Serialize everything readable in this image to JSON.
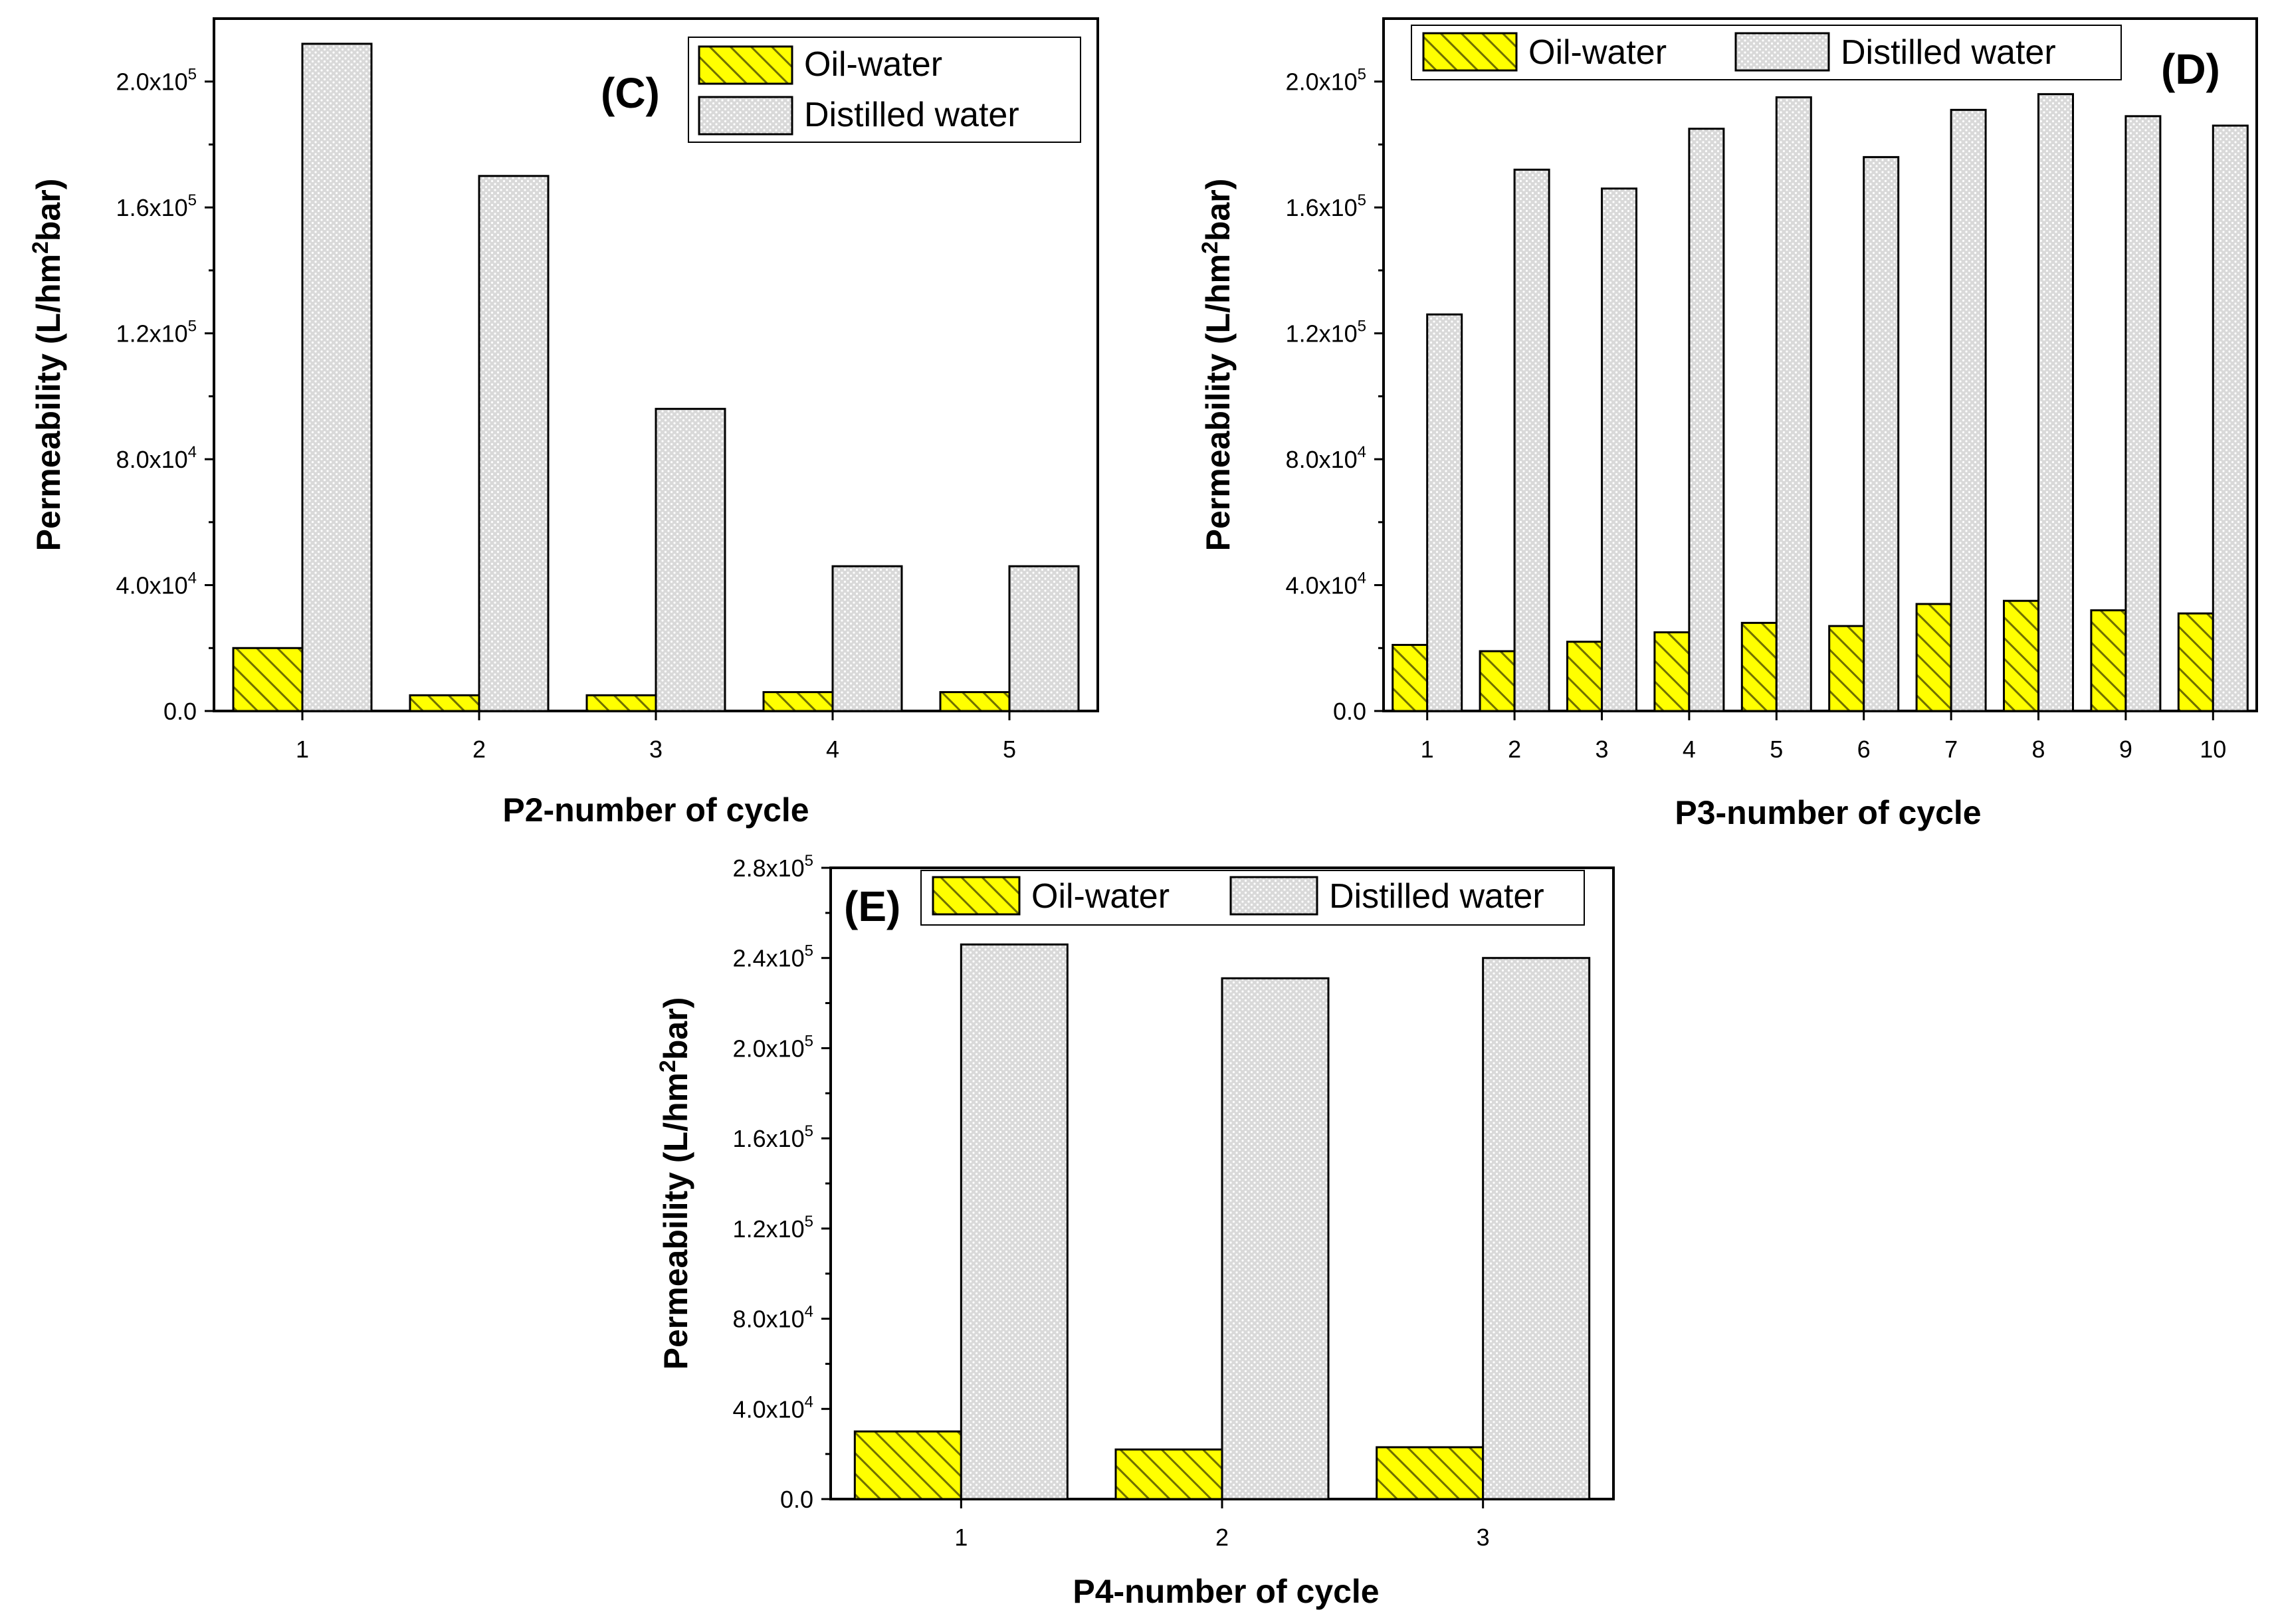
{
  "colors": {
    "oil_fill": "#ffff00",
    "oil_hatch": "#707000",
    "water_fill": "#d9d9d9",
    "water_dot": "#ffffff",
    "axis": "#000000",
    "bar_stroke": "#000000"
  },
  "legend": {
    "oil": "Oil-water",
    "water": "Distilled water"
  },
  "chart_data": [
    {
      "id": "C",
      "type": "bar",
      "panel_label": "(C)",
      "xlabel": "P2-number of cycle",
      "ylabel_prefix": "Permeability (L/hm",
      "ylabel_sup": "2",
      "ylabel_suffix": "bar)",
      "categories": [
        "1",
        "2",
        "3",
        "4",
        "5"
      ],
      "ylim": [
        0,
        220000
      ],
      "y_ticks": [
        {
          "mant": "0.0",
          "exp": ""
        },
        {
          "mant": "4.0x10",
          "exp": "4"
        },
        {
          "mant": "8.0x10",
          "exp": "4"
        },
        {
          "mant": "1.2x10",
          "exp": "5"
        },
        {
          "mant": "1.6x10",
          "exp": "5"
        },
        {
          "mant": "2.0x10",
          "exp": "5"
        }
      ],
      "legend_position": "top-right",
      "series": [
        {
          "name": "Oil-water",
          "key": "oil",
          "values": [
            20000,
            5000,
            5000,
            6000,
            6000
          ]
        },
        {
          "name": "Distilled water",
          "key": "water",
          "values": [
            212000,
            170000,
            96000,
            46000,
            46000
          ]
        }
      ]
    },
    {
      "id": "D",
      "type": "bar",
      "panel_label": "(D)",
      "xlabel": "P3-number of cycle",
      "ylabel_prefix": "Permeability (L/hm",
      "ylabel_sup": "2",
      "ylabel_suffix": "bar)",
      "categories": [
        "1",
        "2",
        "3",
        "4",
        "5",
        "6",
        "7",
        "8",
        "9",
        "10"
      ],
      "ylim": [
        0,
        220000
      ],
      "y_ticks": [
        {
          "mant": "0.0",
          "exp": ""
        },
        {
          "mant": "4.0x10",
          "exp": "4"
        },
        {
          "mant": "8.0x10",
          "exp": "4"
        },
        {
          "mant": "1.2x10",
          "exp": "5"
        },
        {
          "mant": "1.6x10",
          "exp": "5"
        },
        {
          "mant": "2.0x10",
          "exp": "5"
        }
      ],
      "legend_position": "top",
      "series": [
        {
          "name": "Oil-water",
          "key": "oil",
          "values": [
            21000,
            19000,
            22000,
            25000,
            28000,
            27000,
            34000,
            35000,
            32000,
            31000
          ]
        },
        {
          "name": "Distilled water",
          "key": "water",
          "values": [
            126000,
            172000,
            166000,
            185000,
            195000,
            176000,
            191000,
            196000,
            189000,
            186000
          ]
        }
      ]
    },
    {
      "id": "E",
      "type": "bar",
      "panel_label": "(E)",
      "xlabel": "P4-number of cycle",
      "ylabel_prefix": "Permeability (L/hm",
      "ylabel_sup": "2",
      "ylabel_suffix": "bar)",
      "categories": [
        "1",
        "2",
        "3"
      ],
      "ylim": [
        0,
        280000
      ],
      "y_ticks": [
        {
          "mant": "0.0",
          "exp": ""
        },
        {
          "mant": "4.0x10",
          "exp": "4"
        },
        {
          "mant": "8.0x10",
          "exp": "4"
        },
        {
          "mant": "1.2x10",
          "exp": "5"
        },
        {
          "mant": "1.6x10",
          "exp": "5"
        },
        {
          "mant": "2.0x10",
          "exp": "5"
        },
        {
          "mant": "2.4x10",
          "exp": "5"
        },
        {
          "mant": "2.8x10",
          "exp": "5"
        }
      ],
      "legend_position": "top",
      "series": [
        {
          "name": "Oil-water",
          "key": "oil",
          "values": [
            30000,
            22000,
            23000
          ]
        },
        {
          "name": "Distilled water",
          "key": "water",
          "values": [
            246000,
            231000,
            240000
          ]
        }
      ]
    }
  ]
}
